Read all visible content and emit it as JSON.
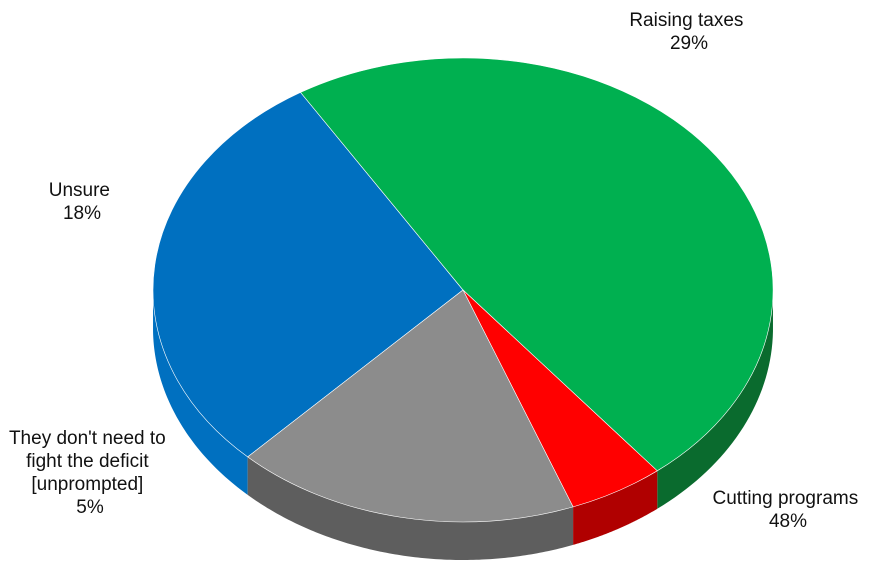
{
  "chart_data": {
    "type": "pie",
    "style": "3d",
    "slices": [
      {
        "label": "Raising taxes",
        "lines": [
          "Raising taxes"
        ],
        "value": 29,
        "value_text": "29%",
        "color": "#0070C0"
      },
      {
        "label": "Cutting programs",
        "lines": [
          "Cutting programs"
        ],
        "value": 48,
        "value_text": "48%",
        "color": "#00B050"
      },
      {
        "label": "They don't need to fight the deficit [unprompted]",
        "lines": [
          "They don't need to",
          "fight the deficit",
          "[unprompted]"
        ],
        "value": 5,
        "value_text": "5%",
        "color": "#FF0000"
      },
      {
        "label": "Unsure",
        "lines": [
          "Unsure"
        ],
        "value": 18,
        "value_text": "18%",
        "color": "#8C8C8C"
      }
    ],
    "side_colors": {
      "Cutting programs": "#0A6B2E",
      "They don't need to fight the deficit [unprompted]": "#B00000",
      "Unsure": "#5E5E5E"
    }
  }
}
